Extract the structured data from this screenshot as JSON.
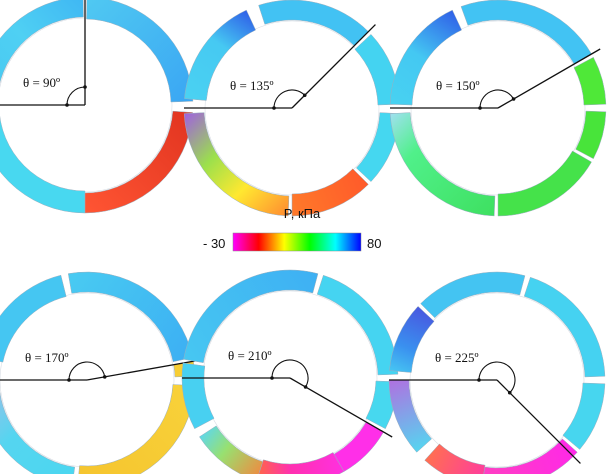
{
  "colorbar": {
    "title": "P, кПа",
    "min_label": "- 30",
    "max_label": "80",
    "stops": [
      "#ff00ff",
      "#ff0000",
      "#ffff00",
      "#00ff00",
      "#00ffff",
      "#0000ff"
    ]
  },
  "panels": [
    {
      "label": "θ = 90º",
      "theta_deg": 90,
      "arcs": [
        {
          "start": 91,
          "end": 173,
          "fill": "#43c6f4",
          "gradient": [
            [
              "#3fb7f3",
              0
            ],
            [
              "#4fd0f3",
              0.5
            ],
            [
              "#47c8f2",
              1
            ]
          ]
        },
        {
          "start": 180,
          "end": 270,
          "fill": "#48d8f0"
        },
        {
          "start": 270,
          "end": 356,
          "fill": "#e8452c",
          "gradient": [
            [
              "#ff5533",
              0
            ],
            [
              "#e13420",
              1
            ]
          ]
        },
        {
          "start": 2,
          "end": 89,
          "fill": "#43bdf2",
          "gradient": [
            [
              "#3aa6f3",
              0
            ],
            [
              "#50c9f2",
              1
            ]
          ]
        }
      ]
    },
    {
      "label": "θ = 135º",
      "theta_deg": 135,
      "arcs": [
        {
          "start": 45,
          "end": 108,
          "fill": "#42c2f3"
        },
        {
          "start": 115,
          "end": 175,
          "fill": "#46c9f2",
          "gradient": [
            [
              "#2f60e8",
              0
            ],
            [
              "#46c9f2",
              0.4
            ],
            [
              "#4ad2f2",
              1
            ]
          ]
        },
        {
          "start": 183,
          "end": 268,
          "fill": "#d9e94a",
          "gradient": [
            [
              "#a060e0",
              0
            ],
            [
              "#9be04c",
              0.35
            ],
            [
              "#ffe830",
              0.65
            ],
            [
              "#ff8a30",
              1
            ]
          ]
        },
        {
          "start": 270,
          "end": 315,
          "fill": "#ff7a2a",
          "gradient": [
            [
              "#ff7a2a",
              0
            ],
            [
              "#ff5a2a",
              1
            ]
          ]
        },
        {
          "start": 317,
          "end": 357,
          "fill": "#45d7f0"
        },
        {
          "start": 2,
          "end": 43,
          "fill": "#44d3f1"
        }
      ]
    },
    {
      "label": "θ = 150º",
      "theta_deg": 150,
      "arcs": [
        {
          "start": 30,
          "end": 110,
          "fill": "#42c3f3"
        },
        {
          "start": 115,
          "end": 178,
          "fill": "#44c8f2",
          "gradient": [
            [
              "#3060e8",
              0
            ],
            [
              "#44c8f2",
              0.5
            ],
            [
              "#48d2f1",
              1
            ]
          ]
        },
        {
          "start": 183,
          "end": 268,
          "fill": "#3fe07a",
          "gradient": [
            [
              "#a0e0f0",
              0
            ],
            [
              "#50f08a",
              0.3
            ],
            [
              "#3ee060",
              1
            ]
          ]
        },
        {
          "start": 270,
          "end": 330,
          "fill": "#45e24a"
        },
        {
          "start": 332,
          "end": 358,
          "fill": "#48e43a"
        },
        {
          "start": 2,
          "end": 28,
          "fill": "#4fe838"
        }
      ]
    },
    {
      "label": "θ = 170º",
      "theta_deg": 170,
      "arcs": [
        {
          "start": 12,
          "end": 100,
          "fill": "#45c4f2",
          "gradient": [
            [
              "#3caff3",
              0
            ],
            [
              "#49cbf2",
              1
            ]
          ]
        },
        {
          "start": 104,
          "end": 168,
          "fill": "#45c6f2"
        },
        {
          "start": 188,
          "end": 262,
          "fill": "#6fd4f0",
          "gradient": [
            [
              "#9ac0e8",
              0
            ],
            [
              "#55d5f0",
              0.4
            ],
            [
              "#4ad7f0",
              1
            ]
          ]
        },
        {
          "start": 265,
          "end": 357,
          "fill": "#f4cb35",
          "gradient": [
            [
              "#f5c42e",
              0
            ],
            [
              "#f8d23a",
              1
            ]
          ]
        },
        {
          "start": 2,
          "end": 10,
          "fill": "#f7cd33"
        }
      ]
    },
    {
      "label": "θ = 210º",
      "theta_deg": 210,
      "arcs": [
        {
          "start": 75,
          "end": 170,
          "fill": "#43bff3",
          "gradient": [
            [
              "#3eb0f3",
              0
            ],
            [
              "#47c7f2",
              1
            ]
          ]
        },
        {
          "start": 172,
          "end": 208,
          "fill": "#48d0f1"
        },
        {
          "start": 213,
          "end": 252,
          "fill": "#7ce085",
          "gradient": [
            [
              "#60d8e8",
              0
            ],
            [
              "#98e070",
              0.4
            ],
            [
              "#f08a40",
              1
            ]
          ]
        },
        {
          "start": 252,
          "end": 300,
          "fill": "#ff3ac8",
          "gradient": [
            [
              "#ff6a40",
              0
            ],
            [
              "#ff30b0",
              0.4
            ],
            [
              "#ff30e0",
              1
            ]
          ]
        },
        {
          "start": 300,
          "end": 330,
          "fill": "#ff2fe8"
        },
        {
          "start": 332,
          "end": 358,
          "fill": "#47d8ef"
        },
        {
          "start": 2,
          "end": 72,
          "fill": "#45d4f1"
        }
      ]
    },
    {
      "label": "θ = 225º",
      "theta_deg": 225,
      "arcs": [
        {
          "start": 75,
          "end": 135,
          "fill": "#44c4f2"
        },
        {
          "start": 137,
          "end": 175,
          "fill": "#3a78ea",
          "gradient": [
            [
              "#4858e0",
              0
            ],
            [
              "#3a90ef",
              0.6
            ],
            [
              "#46c6f2",
              1
            ]
          ]
        },
        {
          "start": 180,
          "end": 222,
          "fill": "#50d0f0",
          "gradient": [
            [
              "#b070e0",
              0
            ],
            [
              "#55d5f0",
              1
            ]
          ]
        },
        {
          "start": 228,
          "end": 262,
          "fill": "#ff5a60",
          "gradient": [
            [
              "#ff7050",
              0
            ],
            [
              "#ff3aa0",
              1
            ]
          ]
        },
        {
          "start": 262,
          "end": 318,
          "fill": "#ff34d8",
          "gradient": [
            [
              "#ff40c0",
              0
            ],
            [
              "#ff28e8",
              1
            ]
          ]
        },
        {
          "start": 320,
          "end": 358,
          "fill": "#47d6ef"
        },
        {
          "start": 2,
          "end": 72,
          "fill": "#45d2f1"
        }
      ]
    }
  ]
}
